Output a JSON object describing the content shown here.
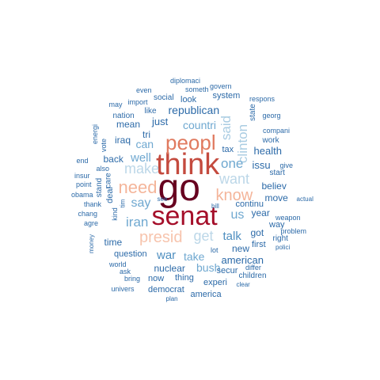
{
  "words": [
    {
      "text": "go",
      "color": "#67001f"
    },
    {
      "text": "senat",
      "color": "#a50f2a"
    },
    {
      "text": "think",
      "color": "#c44a3e"
    },
    {
      "text": "peopl",
      "color": "#e07a5f"
    },
    {
      "text": "need",
      "color": "#f4b59a"
    },
    {
      "text": "know",
      "color": "#f4b59a"
    },
    {
      "text": "presid",
      "color": "#f7c4ad"
    },
    {
      "text": "want",
      "color": "#bcd7e8"
    },
    {
      "text": "get",
      "color": "#bcd7e8"
    },
    {
      "text": "make",
      "color": "#bcd7e8"
    },
    {
      "text": "clinton",
      "color": "#a9cce2"
    },
    {
      "text": "said",
      "color": "#a9cce2"
    },
    {
      "text": "well",
      "color": "#6fa8d0"
    },
    {
      "text": "one",
      "color": "#6fa8d0"
    },
    {
      "text": "iran",
      "color": "#6fa8d0"
    },
    {
      "text": "say",
      "color": "#6fa8d0"
    },
    {
      "text": "us",
      "color": "#6fa8d0"
    },
    {
      "text": "talk",
      "color": "#4f8fc0"
    },
    {
      "text": "bush",
      "color": "#6fa8d0"
    },
    {
      "text": "take",
      "color": "#6fa8d0"
    },
    {
      "text": "war",
      "color": "#4f8fc0"
    },
    {
      "text": "countri",
      "color": "#6fa8d0"
    },
    {
      "text": "can",
      "color": "#6fa8d0"
    },
    {
      "text": "republican",
      "color": "#2c6aa8"
    },
    {
      "text": "american",
      "color": "#2c6aa8"
    },
    {
      "text": "just",
      "color": "#2c6aa8"
    },
    {
      "text": "health",
      "color": "#2c6aa8"
    },
    {
      "text": "issu",
      "color": "#2c6aa8"
    },
    {
      "text": "tri",
      "color": "#2c6aa8"
    },
    {
      "text": "mean",
      "color": "#2c6aa8"
    },
    {
      "text": "iraq",
      "color": "#2c6aa8"
    },
    {
      "text": "back",
      "color": "#2c6aa8"
    },
    {
      "text": "believ",
      "color": "#2c6aa8"
    },
    {
      "text": "move",
      "color": "#2c6aa8"
    },
    {
      "text": "year",
      "color": "#2c6aa8"
    },
    {
      "text": "continu",
      "color": "#2c6aa8"
    },
    {
      "text": "new",
      "color": "#2c6aa8"
    },
    {
      "text": "got",
      "color": "#2c6aa8"
    },
    {
      "text": "time",
      "color": "#2c6aa8"
    },
    {
      "text": "nuclear",
      "color": "#2c6aa8"
    },
    {
      "text": "secur",
      "color": "#2c6aa8"
    },
    {
      "text": "thing",
      "color": "#2c6aa8"
    },
    {
      "text": "now",
      "color": "#2c6aa8"
    },
    {
      "text": "question",
      "color": "#2c6aa8"
    },
    {
      "text": "experi",
      "color": "#2c6aa8"
    },
    {
      "text": "children",
      "color": "#2c6aa8"
    },
    {
      "text": "democrat",
      "color": "#2c6aa8"
    },
    {
      "text": "america",
      "color": "#2c6aa8"
    },
    {
      "text": "deal",
      "color": "#2c6aa8"
    },
    {
      "text": "care",
      "color": "#2c6aa8"
    },
    {
      "text": "stand",
      "color": "#2c6aa8"
    },
    {
      "text": "way",
      "color": "#2c6aa8"
    },
    {
      "text": "first",
      "color": "#2c6aa8"
    },
    {
      "text": "right",
      "color": "#2c6aa8"
    },
    {
      "text": "tax",
      "color": "#2c6aa8"
    },
    {
      "text": "look",
      "color": "#2c6aa8"
    },
    {
      "text": "system",
      "color": "#2c6aa8"
    },
    {
      "text": "social",
      "color": "#2c6aa8"
    },
    {
      "text": "like",
      "color": "#2c6aa8"
    },
    {
      "text": "nation",
      "color": "#2c6aa8"
    },
    {
      "text": "state",
      "color": "#2c6aa8"
    },
    {
      "text": "work",
      "color": "#2c6aa8"
    },
    {
      "text": "start",
      "color": "#2c6aa8"
    },
    {
      "text": "georg",
      "color": "#2c6aa8"
    },
    {
      "text": "compani",
      "color": "#2c6aa8"
    },
    {
      "text": "give",
      "color": "#2c6aa8"
    },
    {
      "text": "diplomaci",
      "color": "#2c6aa8"
    },
    {
      "text": "govern",
      "color": "#2c6aa8"
    },
    {
      "text": "someth",
      "color": "#2c6aa8"
    },
    {
      "text": "even",
      "color": "#2c6aa8"
    },
    {
      "text": "import",
      "color": "#2c6aa8"
    },
    {
      "text": "respons",
      "color": "#2c6aa8"
    },
    {
      "text": "may",
      "color": "#2c6aa8"
    },
    {
      "text": "energi",
      "color": "#2c6aa8"
    },
    {
      "text": "vote",
      "color": "#2c6aa8"
    },
    {
      "text": "end",
      "color": "#2c6aa8"
    },
    {
      "text": "also",
      "color": "#2c6aa8"
    },
    {
      "text": "insur",
      "color": "#2c6aa8"
    },
    {
      "text": "point",
      "color": "#2c6aa8"
    },
    {
      "text": "obama",
      "color": "#2c6aa8"
    },
    {
      "text": "thank",
      "color": "#2c6aa8"
    },
    {
      "text": "chang",
      "color": "#2c6aa8"
    },
    {
      "text": "agre",
      "color": "#2c6aa8"
    },
    {
      "text": "money",
      "color": "#2c6aa8"
    },
    {
      "text": "kind",
      "color": "#2c6aa8"
    },
    {
      "text": "tim",
      "color": "#2c6aa8"
    },
    {
      "text": "see",
      "color": "#2c6aa8"
    },
    {
      "text": "bill",
      "color": "#2c6aa8"
    },
    {
      "text": "actual",
      "color": "#2c6aa8"
    },
    {
      "text": "weapon",
      "color": "#2c6aa8"
    },
    {
      "text": "problem",
      "color": "#2c6aa8"
    },
    {
      "text": "polici",
      "color": "#2c6aa8"
    },
    {
      "text": "lot",
      "color": "#2c6aa8"
    },
    {
      "text": "differ",
      "color": "#2c6aa8"
    },
    {
      "text": "world",
      "color": "#2c6aa8"
    },
    {
      "text": "ask",
      "color": "#2c6aa8"
    },
    {
      "text": "bring",
      "color": "#2c6aa8"
    },
    {
      "text": "univers",
      "color": "#2c6aa8"
    },
    {
      "text": "plan",
      "color": "#2c6aa8"
    },
    {
      "text": "clear",
      "color": "#2c6aa8"
    }
  ]
}
